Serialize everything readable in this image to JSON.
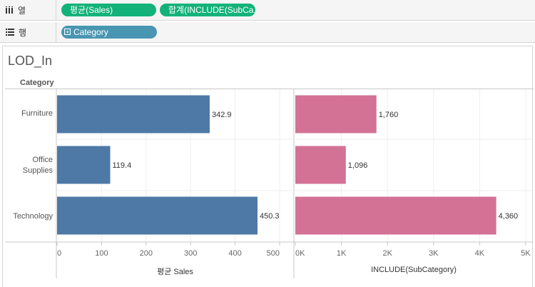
{
  "shelves": {
    "columns": {
      "label": "열",
      "icon": "columns-icon",
      "pills": [
        "평균(Sales)",
        "합계(INCLUDE(SubCa..."
      ]
    },
    "rows": {
      "label": "행",
      "icon": "rows-icon",
      "pills": [
        "Category"
      ]
    }
  },
  "sheet": {
    "title": "LOD_In",
    "row_header": "Category"
  },
  "colors": {
    "bar_left": "#4e79a7",
    "bar_right": "#d37295",
    "pill_green": "#13b27a",
    "pill_blue": "#4996b2"
  },
  "chart_data": [
    {
      "type": "bar",
      "orientation": "horizontal",
      "categories": [
        "Furniture",
        "Office Supplies",
        "Technology"
      ],
      "values": [
        342.9,
        119.4,
        450.3
      ],
      "value_labels": [
        "342.9",
        "119.4",
        "450.3"
      ],
      "xlabel": "평균 Sales",
      "xlim": [
        0,
        520
      ],
      "ticks": [
        0,
        100,
        200,
        300,
        400,
        500
      ],
      "tick_labels": [
        "0",
        "100",
        "200",
        "300",
        "400",
        "500"
      ],
      "grid": true
    },
    {
      "type": "bar",
      "orientation": "horizontal",
      "categories": [
        "Furniture",
        "Office Supplies",
        "Technology"
      ],
      "values": [
        1760,
        1096,
        4360
      ],
      "value_labels": [
        "1,760",
        "1,096",
        "4,360"
      ],
      "xlabel": "INCLUDE(SubCategory)",
      "xlim": [
        0,
        5050
      ],
      "ticks": [
        0,
        1000,
        2000,
        3000,
        4000,
        5000
      ],
      "tick_labels": [
        "0K",
        "1K",
        "2K",
        "3K",
        "4K",
        "5K"
      ],
      "grid": true
    }
  ]
}
